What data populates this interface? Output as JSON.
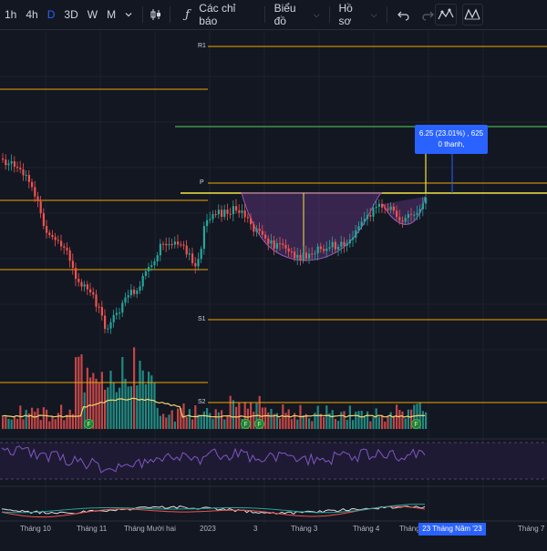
{
  "toolbar": {
    "timeframes": [
      {
        "label": "1h",
        "active": false
      },
      {
        "label": "4h",
        "active": false
      },
      {
        "label": "D",
        "active": true
      },
      {
        "label": "3D",
        "active": false
      },
      {
        "label": "W",
        "active": false
      },
      {
        "label": "M",
        "active": false
      }
    ],
    "indicators_label": "Các chỉ báo",
    "chart_type_label": "Biểu đồ",
    "profile_label": "Hồ sơ"
  },
  "chart": {
    "levels": {
      "r1": "R1",
      "p": "P",
      "s1": "S1",
      "s2": "S2"
    },
    "measure": {
      "line1": "6.25 (23.01%) , 625",
      "line2": "0 thanh,"
    },
    "earnings_marker": "F",
    "x_labels": [
      "Tháng 10",
      "Tháng 11",
      "Tháng Mười hai",
      "2023",
      "3",
      "Tháng 3",
      "Tháng 4",
      "Tháng",
      "Tháng 7"
    ],
    "date_badge": "23 Tháng Năm '23"
  },
  "colors": {
    "up": "#26a69a",
    "down": "#ef5350",
    "level_line": "#f0a500",
    "neckline": "#f5e642",
    "target_line": "#4caf50",
    "accent": "#2962ff",
    "cup_fill": "#7b3fa0",
    "rsi_line": "#7e57c2",
    "volume_ma": "#f5d76e"
  },
  "icons": [
    "dropdown-chevron-icon",
    "candles-icon",
    "indicators-fx-icon",
    "undo-icon",
    "redo-icon",
    "pattern-icon",
    "xabcd-pattern-icon"
  ]
}
